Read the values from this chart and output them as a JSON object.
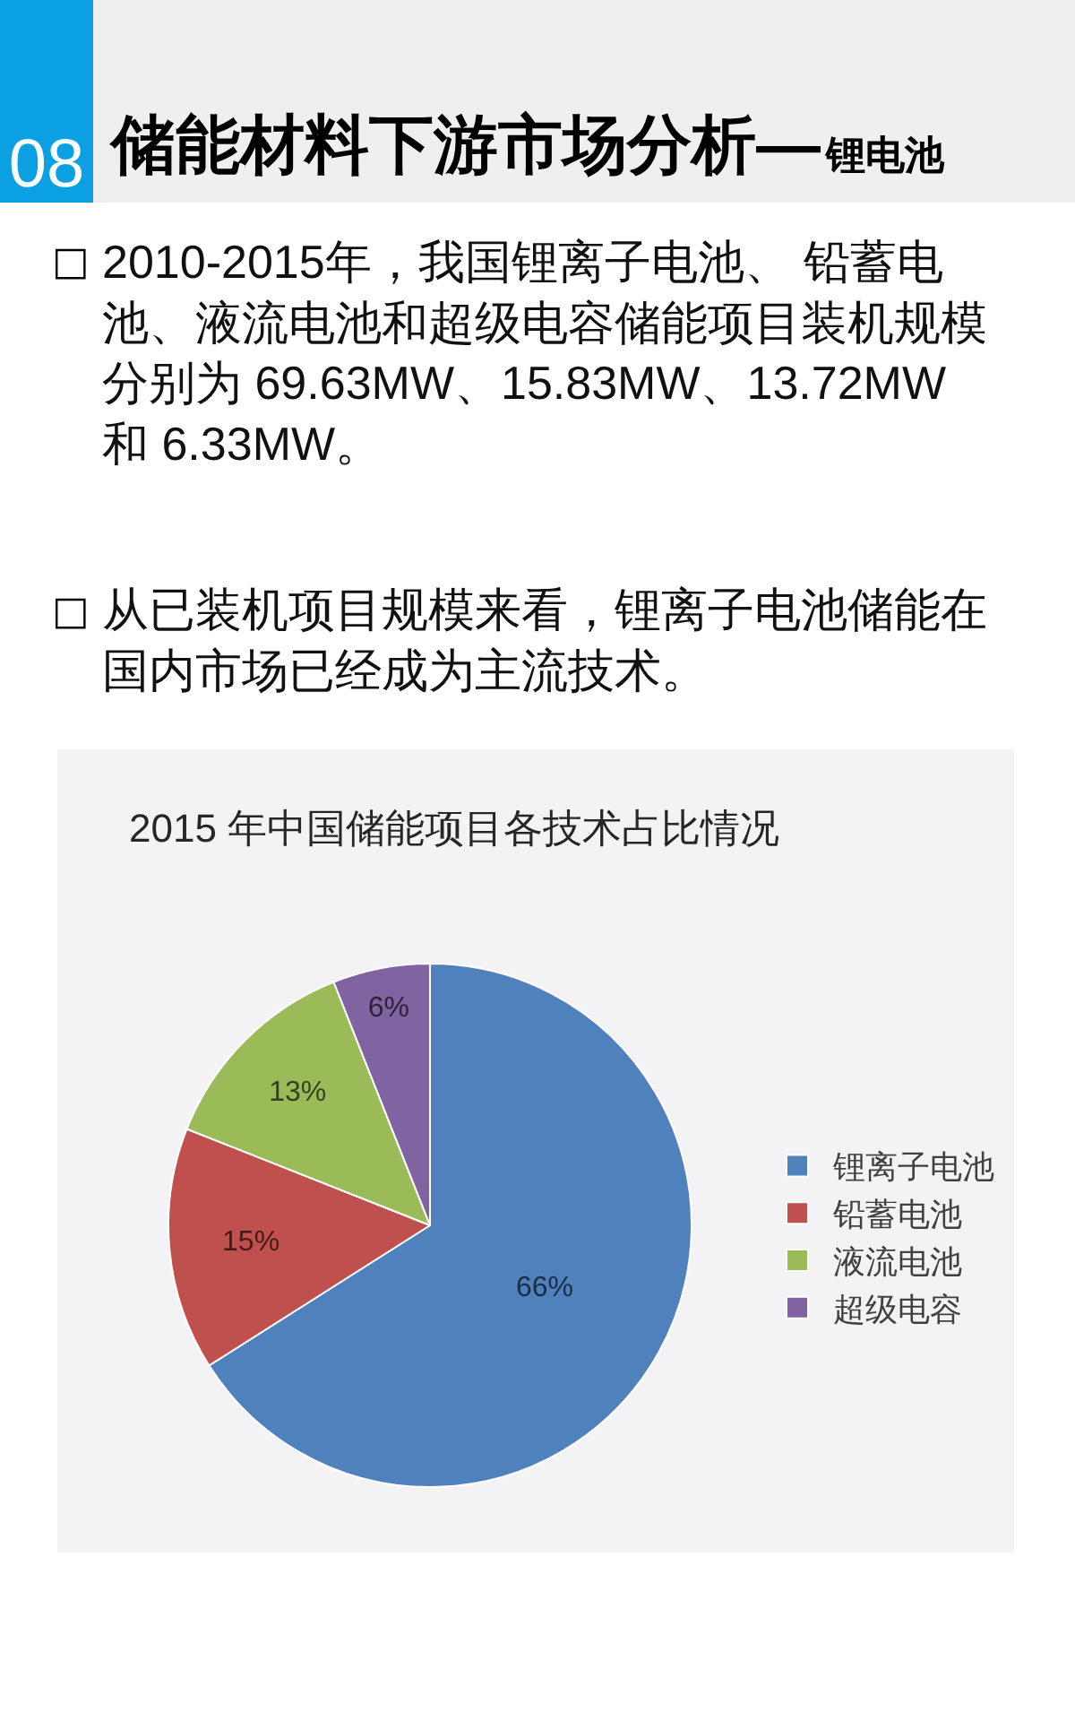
{
  "chart_data": {
    "type": "pie",
    "title": "2015 年中国储能项目各技术占比情况",
    "categories": [
      "锂离子电池",
      "铅蓄电池",
      "液流电池",
      "超级电容"
    ],
    "values": [
      66,
      15,
      13,
      6
    ],
    "colors": [
      "#4f81bd",
      "#c0504d",
      "#9bbb59",
      "#8064a2"
    ],
    "value_labels": [
      "66%",
      "15%",
      "13%",
      "6%"
    ],
    "legend": "right",
    "annotations": [
      "08",
      "储能材料下游市场分析—",
      "锂电池",
      "□",
      "2010-2015年，我国锂离子电池、 铅蓄电池、液流电池和超级电容储能项目装机规模分别为 69.63MW、15.83MW、13.72MW和 6.33MW。",
      "□",
      "从已装机项目规模来看，锂离子电池储能在国内市场已经成为主流技术。"
    ]
  }
}
